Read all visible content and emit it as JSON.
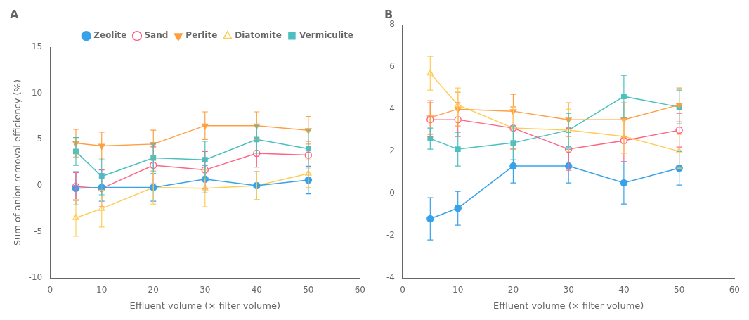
{
  "chart_data": [
    {
      "type": "line",
      "title": "A",
      "xlabel": "Effluent volume (× filter volume)",
      "ylabel": "Sum of anion removal efficiency (%)",
      "x": [
        5,
        10,
        20,
        30,
        40,
        50
      ],
      "xlim": [
        0,
        60
      ],
      "xticks": [
        0,
        10,
        20,
        30,
        40,
        50,
        60
      ],
      "ylim": [
        -10,
        15
      ],
      "yticks": [
        -10,
        -5,
        0,
        5,
        10,
        15
      ],
      "grid": false,
      "legend": "upper right",
      "series": [
        {
          "name": "Zeolite",
          "color": "rgb(54, 162, 235)",
          "marker": "circle",
          "values": [
            -0.3,
            -0.2,
            -0.2,
            0.7,
            0.0,
            0.6
          ],
          "yerr": [
            1.8,
            1.5,
            1.5,
            1.5,
            1.5,
            1.5
          ]
        },
        {
          "name": "Sand",
          "color": "rgb(255, 99, 132)",
          "marker": "open-circle",
          "values": [
            -0.1,
            -0.3,
            2.2,
            1.7,
            3.5,
            3.3
          ],
          "yerr": [
            1.5,
            2.0,
            2.0,
            2.0,
            1.5,
            1.5
          ]
        },
        {
          "name": "Perlite",
          "color": "rgb(255, 159, 64)",
          "marker": "triangle-down",
          "values": [
            4.6,
            4.3,
            4.5,
            6.5,
            6.5,
            6.0
          ],
          "yerr": [
            1.5,
            1.5,
            1.5,
            1.5,
            1.5,
            1.5
          ]
        },
        {
          "name": "Diatomite",
          "color": "rgb(255, 205, 86)",
          "marker": "open-triangle",
          "values": [
            -3.5,
            -2.5,
            -0.2,
            -0.3,
            0.0,
            1.3
          ],
          "yerr": [
            2.0,
            2.0,
            1.8,
            2.0,
            1.5,
            1.5
          ]
        },
        {
          "name": "Vermiculite",
          "color": "rgb(75, 192, 192)",
          "marker": "square",
          "values": [
            3.7,
            1.0,
            3.0,
            2.8,
            5.0,
            4.0
          ],
          "yerr": [
            1.5,
            2.0,
            1.5,
            2.0,
            1.5,
            2.0
          ]
        }
      ]
    },
    {
      "type": "line",
      "title": "B",
      "xlabel": "Effluent volume (× filter volume)",
      "x": [
        5,
        10,
        20,
        30,
        40,
        50
      ],
      "xlim": [
        0,
        60
      ],
      "xticks": [
        0,
        10,
        20,
        30,
        40,
        50,
        60
      ],
      "ylim": [
        -4,
        8
      ],
      "yticks": [
        -4,
        -2,
        0,
        2,
        4,
        6,
        8
      ],
      "grid": false,
      "series": [
        {
          "name": "Zeolite",
          "color": "rgb(54, 162, 235)",
          "marker": "circle",
          "values": [
            -1.2,
            -0.7,
            1.3,
            1.3,
            0.5,
            1.2
          ],
          "yerr": [
            1.0,
            0.8,
            0.8,
            0.8,
            1.0,
            0.8
          ]
        },
        {
          "name": "Sand",
          "color": "rgb(255, 99, 132)",
          "marker": "open-circle",
          "values": [
            3.5,
            3.5,
            3.1,
            2.1,
            2.5,
            3.0
          ],
          "yerr": [
            0.8,
            0.8,
            1.0,
            1.0,
            1.0,
            0.8
          ]
        },
        {
          "name": "Perlite",
          "color": "rgb(255, 159, 64)",
          "marker": "triangle-down",
          "values": [
            3.6,
            4.0,
            3.9,
            3.5,
            3.5,
            4.2
          ],
          "yerr": [
            0.8,
            0.8,
            0.8,
            0.8,
            0.8,
            0.8
          ]
        },
        {
          "name": "Diatomite",
          "color": "rgb(255, 205, 86)",
          "marker": "open-triangle",
          "values": [
            5.7,
            4.2,
            3.1,
            3.0,
            2.7,
            2.0
          ],
          "yerr": [
            0.8,
            0.8,
            1.0,
            1.0,
            0.8,
            0.8
          ]
        },
        {
          "name": "Vermiculite",
          "color": "rgb(75, 192, 192)",
          "marker": "square",
          "values": [
            2.6,
            2.1,
            2.4,
            3.0,
            4.6,
            4.1
          ],
          "yerr": [
            0.5,
            0.8,
            0.8,
            0.8,
            1.0,
            0.8
          ]
        }
      ]
    }
  ]
}
